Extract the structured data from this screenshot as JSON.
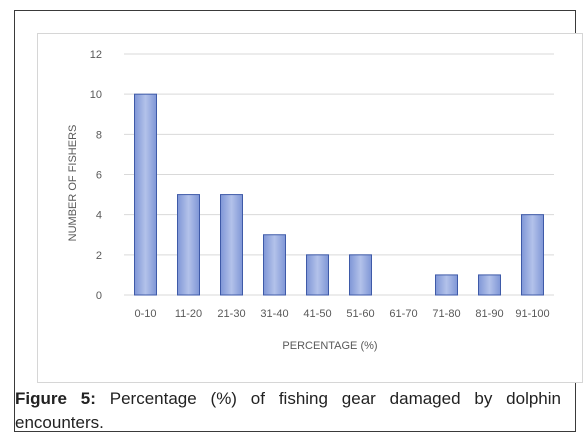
{
  "chart_data": {
    "type": "bar",
    "title": "",
    "categories": [
      "0-10",
      "11-20",
      "21-30",
      "31-40",
      "41-50",
      "51-60",
      "61-70",
      "71-80",
      "81-90",
      "91-100"
    ],
    "values": [
      10,
      5,
      5,
      3,
      2,
      2,
      0,
      1,
      1,
      4
    ],
    "xlabel": "PERCENTAGE (%)",
    "ylabel": "NUMBER OF FISHERS",
    "ylim": [
      0,
      12
    ],
    "yticks": [
      0,
      2,
      4,
      6,
      8,
      10,
      12
    ],
    "grid": true,
    "legend": "none",
    "colors": {
      "bar_fill": "#9aaee0",
      "bar_edge": "#3e5aa8",
      "grid": "#d9d9d9",
      "text": "#595959"
    }
  },
  "caption": {
    "label": "Figure 5:",
    "text": " Percentage (%) of fishing gear damaged by dolphin encounters."
  }
}
